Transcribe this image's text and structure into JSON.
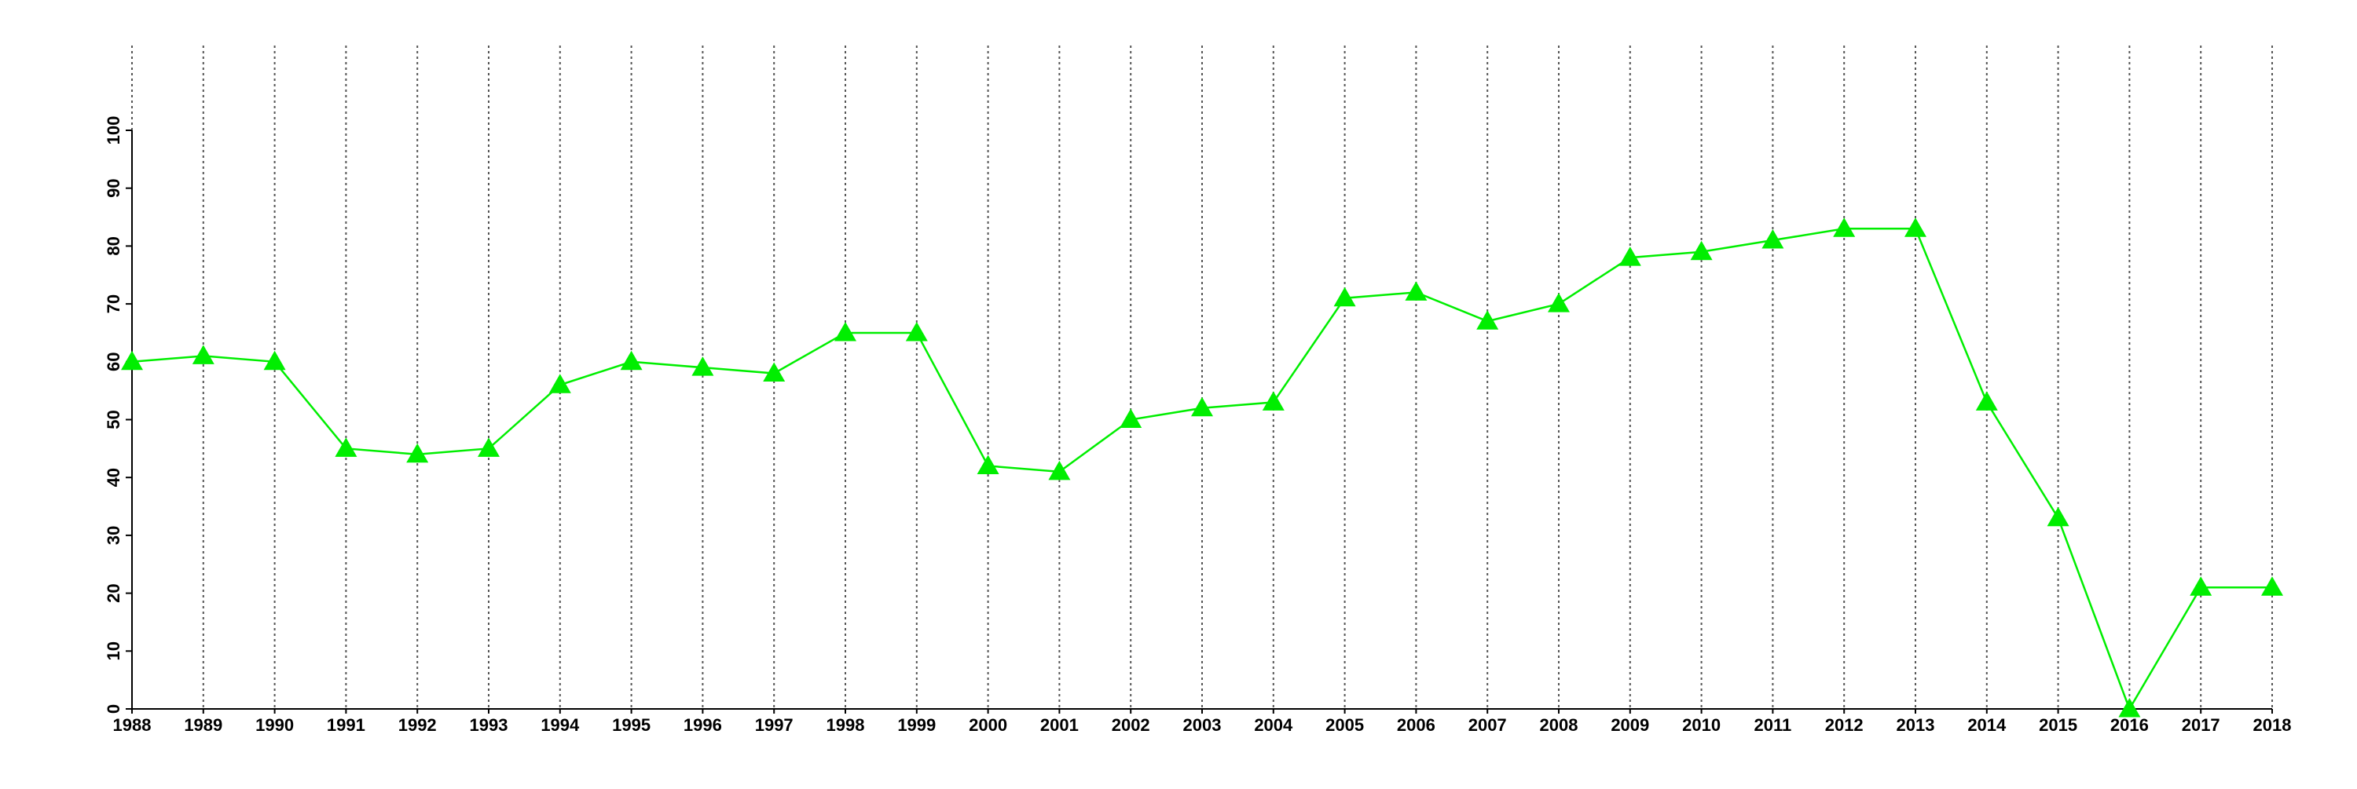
{
  "chart_data": {
    "type": "line",
    "x": [
      1988,
      1989,
      1990,
      1991,
      1992,
      1993,
      1994,
      1995,
      1996,
      1997,
      1998,
      1999,
      2000,
      2001,
      2002,
      2003,
      2004,
      2005,
      2006,
      2007,
      2008,
      2009,
      2010,
      2011,
      2012,
      2013,
      2014,
      2015,
      2016,
      2017,
      2018
    ],
    "series": [
      {
        "color": "#00ee00",
        "marker": "triangle",
        "values": [
          60,
          61,
          60,
          45,
          44,
          45,
          56,
          60,
          59,
          58,
          65,
          65,
          42,
          41,
          50,
          52,
          53,
          71,
          72,
          67,
          70,
          78,
          79,
          81,
          83,
          83,
          53,
          33,
          0,
          21,
          21
        ]
      }
    ],
    "xlim": [
      1988,
      2018
    ],
    "xticks": [
      1988,
      1989,
      1990,
      1991,
      1992,
      1993,
      1994,
      1995,
      1996,
      1997,
      1998,
      1999,
      2000,
      2001,
      2002,
      2003,
      2004,
      2005,
      2006,
      2007,
      2008,
      2009,
      2010,
      2011,
      2012,
      2013,
      2014,
      2015,
      2016,
      2017,
      2018
    ],
    "ylim": [
      0,
      100
    ],
    "yticks": [
      0,
      10,
      20,
      30,
      40,
      50,
      60,
      70,
      80,
      90,
      100
    ],
    "grid": "x"
  }
}
